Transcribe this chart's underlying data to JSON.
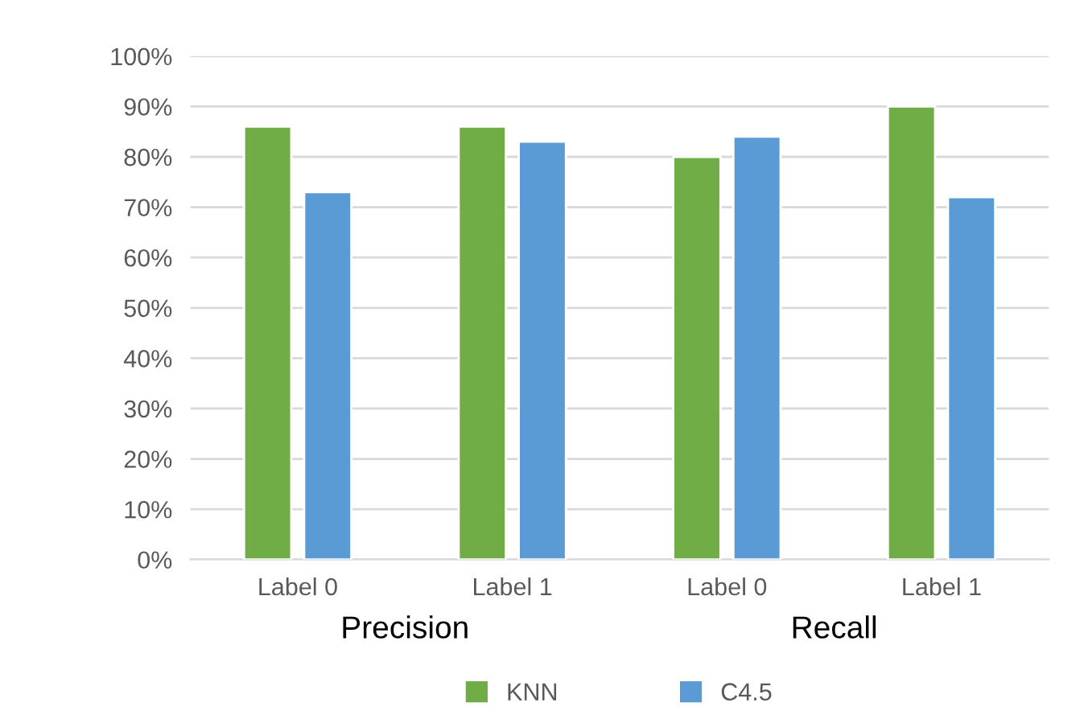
{
  "chart_data": {
    "type": "bar",
    "categories": [
      "Label 0",
      "Label 1",
      "Label 0",
      "Label 1"
    ],
    "series": [
      {
        "name": "KNN",
        "color": "#70ad47",
        "values": [
          86,
          86,
          80,
          90
        ]
      },
      {
        "name": "C4.5",
        "color": "#5b9bd5",
        "values": [
          73,
          83,
          84,
          72
        ]
      }
    ],
    "ylim": [
      0,
      100
    ],
    "yticks": [
      {
        "value": 0,
        "label": "0%"
      },
      {
        "value": 10,
        "label": "10%"
      },
      {
        "value": 20,
        "label": "20%"
      },
      {
        "value": 30,
        "label": "30%"
      },
      {
        "value": 40,
        "label": "40%"
      },
      {
        "value": 50,
        "label": "50%"
      },
      {
        "value": 60,
        "label": "60%"
      },
      {
        "value": 70,
        "label": "70%"
      },
      {
        "value": 80,
        "label": "80%"
      },
      {
        "value": 90,
        "label": "90%"
      },
      {
        "value": 100,
        "label": "100%"
      }
    ],
    "annotations": [
      "Precision",
      "Recall"
    ],
    "grid": "y",
    "legend": "bottom"
  }
}
